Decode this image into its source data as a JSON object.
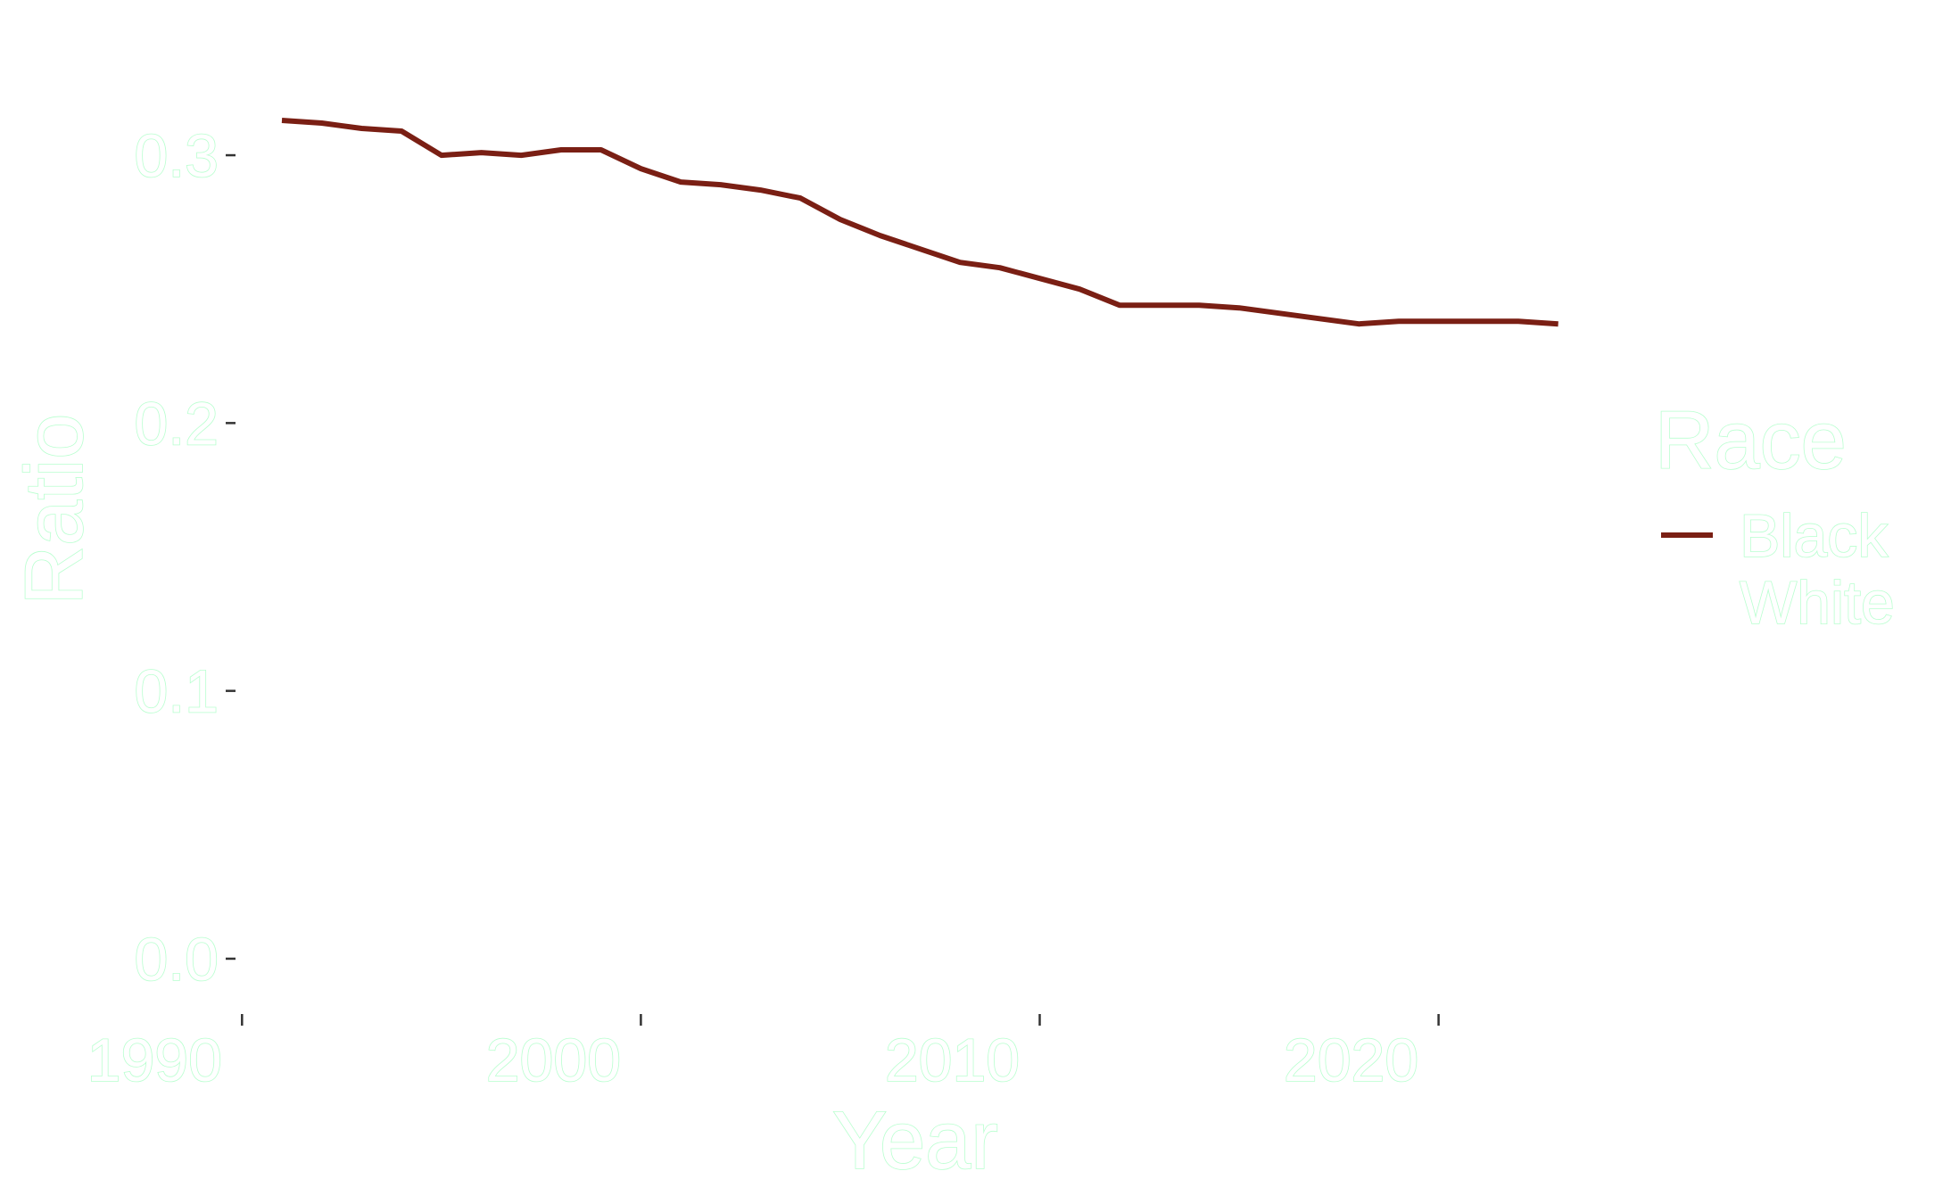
{
  "chart_data": {
    "type": "line",
    "title": "",
    "xlabel": "Year",
    "ylabel": "Ratio",
    "xlim": [
      1989.3,
      2023.7
    ],
    "ylim": [
      -0.015,
      0.318
    ],
    "x_ticks": [
      1990,
      2000,
      2010,
      2020
    ],
    "y_ticks": [
      0.0,
      0.1,
      0.2,
      0.3
    ],
    "y_tick_labels": [
      "0.0",
      "0.1",
      "0.2",
      "0.3"
    ],
    "grid": false,
    "legend": {
      "title": "Race",
      "position": "right",
      "entries": [
        "Black",
        "White"
      ]
    },
    "series": [
      {
        "name": "Black",
        "color": "#7a1f14",
        "x": [
          1991,
          1992,
          1993,
          1994,
          1995,
          1996,
          1997,
          1998,
          1999,
          2000,
          2001,
          2002,
          2003,
          2004,
          2005,
          2006,
          2007,
          2008,
          2009,
          2010,
          2011,
          2012,
          2013,
          2014,
          2015,
          2016,
          2017,
          2018,
          2019,
          2020,
          2021,
          2022,
          2023
        ],
        "y": [
          0.313,
          0.312,
          0.31,
          0.309,
          0.3,
          0.301,
          0.3,
          0.302,
          0.302,
          0.295,
          0.29,
          0.289,
          0.287,
          0.284,
          0.276,
          0.27,
          0.265,
          0.26,
          0.258,
          0.254,
          0.25,
          0.244,
          0.244,
          0.244,
          0.243,
          0.241,
          0.239,
          0.237,
          0.238,
          0.238,
          0.238,
          0.238,
          0.237
        ]
      },
      {
        "name": "White",
        "color": "#ffffff",
        "x": [],
        "y": []
      }
    ]
  }
}
